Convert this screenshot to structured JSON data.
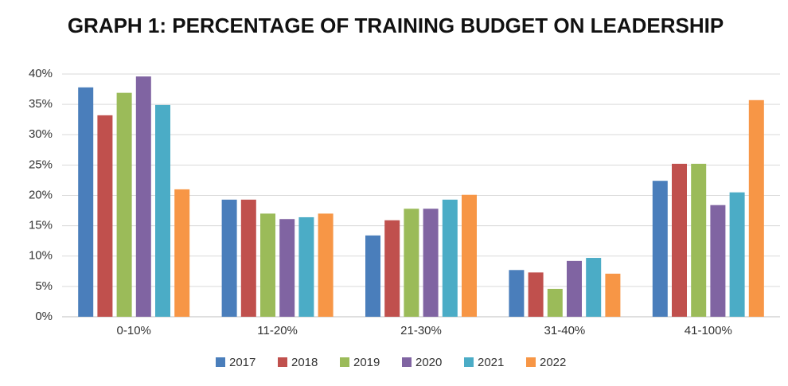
{
  "chart_data": {
    "type": "bar",
    "title": "GRAPH 1: PERCENTAGE OF TRAINING BUDGET ON LEADERSHIP",
    "categories": [
      "0-10%",
      "11-20%",
      "21-30%",
      "31-40%",
      "41-100%"
    ],
    "series": [
      {
        "name": "2017",
        "color": "#4a7ebb",
        "values": [
          37.8,
          19.3,
          13.4,
          7.7,
          22.4
        ]
      },
      {
        "name": "2018",
        "color": "#c0504d",
        "values": [
          33.2,
          19.3,
          15.9,
          7.3,
          25.2
        ]
      },
      {
        "name": "2019",
        "color": "#9bbb59",
        "values": [
          36.9,
          17.0,
          17.8,
          4.6,
          25.2
        ]
      },
      {
        "name": "2020",
        "color": "#8064a2",
        "values": [
          39.6,
          16.1,
          17.8,
          9.2,
          18.4
        ]
      },
      {
        "name": "2021",
        "color": "#4bacc6",
        "values": [
          34.9,
          16.4,
          19.3,
          9.7,
          20.5
        ]
      },
      {
        "name": "2022",
        "color": "#f79646",
        "values": [
          21.0,
          17.0,
          20.1,
          7.1,
          35.7
        ]
      }
    ],
    "ylim": [
      0,
      40
    ],
    "yticks": [
      {
        "value": 0,
        "label": "0%"
      },
      {
        "value": 5,
        "label": "5%"
      },
      {
        "value": 10,
        "label": "10%"
      },
      {
        "value": 15,
        "label": "15%"
      },
      {
        "value": 20,
        "label": "20%"
      },
      {
        "value": 25,
        "label": "25%"
      },
      {
        "value": 30,
        "label": "30%"
      },
      {
        "value": 35,
        "label": "35%"
      },
      {
        "value": 40,
        "label": "40%"
      }
    ],
    "grid": true,
    "legend": "bottom"
  }
}
